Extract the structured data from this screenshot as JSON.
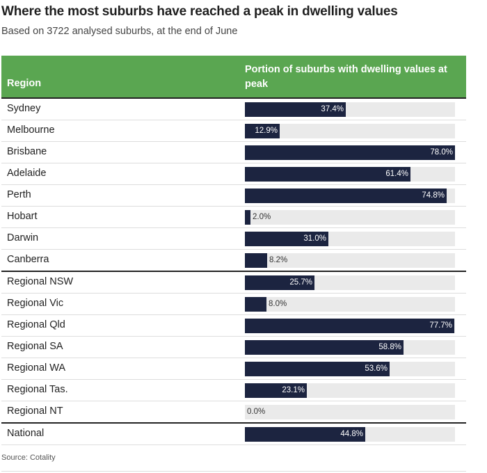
{
  "title": "Where the most suburbs have reached a peak in dwelling values",
  "subtitle": "Based on 3722 analysed suburbs, at the end of June",
  "source": "Source: Cotality",
  "colors": {
    "header_bg": "#5aa651",
    "bar": "#1c2440",
    "track": "#eaeaea"
  },
  "chart_data": {
    "type": "bar",
    "orientation": "horizontal",
    "title": "Where the most suburbs have reached a peak in dwelling values",
    "subtitle": "Based on 3722 analysed suburbs, at the end of June",
    "column_headers": [
      "Region",
      "Portion of suburbs with dwelling values at peak"
    ],
    "xlim": [
      0,
      78.0
    ],
    "unit": "%",
    "groups": [
      {
        "rows": [
          {
            "region": "Sydney",
            "value": 37.4,
            "label": "37.4%"
          },
          {
            "region": "Melbourne",
            "value": 12.9,
            "label": "12.9%"
          },
          {
            "region": "Brisbane",
            "value": 78.0,
            "label": "78.0%"
          },
          {
            "region": "Adelaide",
            "value": 61.4,
            "label": "61.4%"
          },
          {
            "region": "Perth",
            "value": 74.8,
            "label": "74.8%"
          },
          {
            "region": "Hobart",
            "value": 2.0,
            "label": "2.0%"
          },
          {
            "region": "Darwin",
            "value": 31.0,
            "label": "31.0%"
          },
          {
            "region": "Canberra",
            "value": 8.2,
            "label": "8.2%"
          }
        ]
      },
      {
        "rows": [
          {
            "region": "Regional NSW",
            "value": 25.7,
            "label": "25.7%"
          },
          {
            "region": "Regional Vic",
            "value": 8.0,
            "label": "8.0%"
          },
          {
            "region": "Regional Qld",
            "value": 77.7,
            "label": "77.7%"
          },
          {
            "region": "Regional SA",
            "value": 58.8,
            "label": "58.8%"
          },
          {
            "region": "Regional WA",
            "value": 53.6,
            "label": "53.6%"
          },
          {
            "region": "Regional Tas.",
            "value": 23.1,
            "label": "23.1%"
          },
          {
            "region": "Regional NT",
            "value": 0.0,
            "label": "0.0%"
          }
        ]
      },
      {
        "rows": [
          {
            "region": "National",
            "value": 44.8,
            "label": "44.8%"
          }
        ]
      }
    ]
  }
}
